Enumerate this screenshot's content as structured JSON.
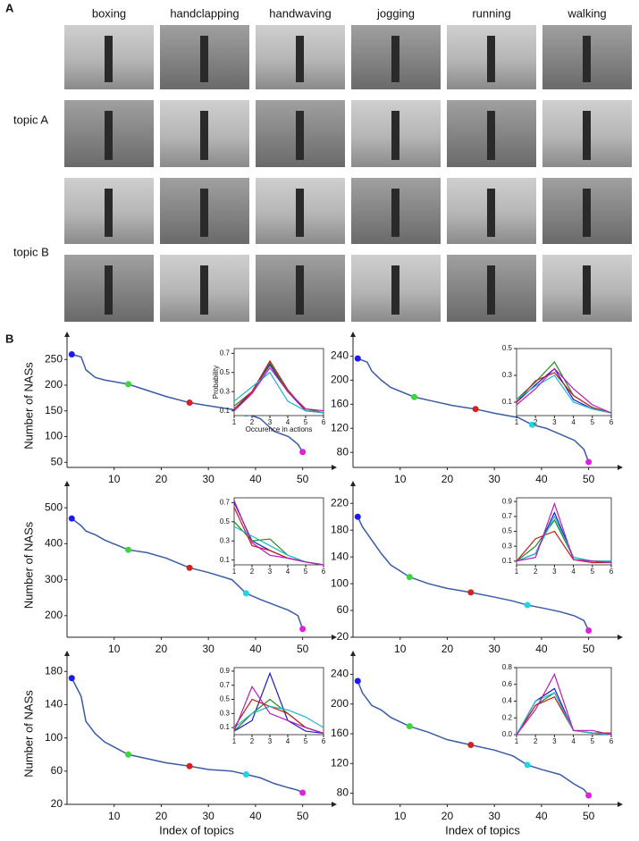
{
  "panel_a": {
    "label": "A",
    "actions": [
      "boxing",
      "handclapping",
      "handwaving",
      "jogging",
      "running",
      "walking"
    ],
    "topics": [
      "topic A",
      "topic B"
    ]
  },
  "panel_b": {
    "label": "B"
  },
  "chart_data": [
    {
      "type": "line",
      "y_label": "Number of NASs",
      "xlim": [
        0,
        55
      ],
      "ylim": [
        40,
        280
      ],
      "xticks": [
        10,
        20,
        30,
        40,
        50
      ],
      "yticks": [
        50,
        100,
        150,
        200,
        250
      ],
      "series": [
        {
          "color": "#3a5ba8",
          "x": [
            1,
            3,
            4,
            6,
            8,
            13,
            17,
            21,
            26,
            30,
            35,
            38,
            41,
            44,
            47,
            49,
            50
          ],
          "values": [
            260,
            255,
            230,
            215,
            210,
            202,
            190,
            178,
            166,
            160,
            153,
            145,
            135,
            110,
            100,
            85,
            70
          ]
        },
        {
          "type": "scatter",
          "x": [
            1,
            13,
            26,
            38,
            50
          ],
          "values": [
            260,
            202,
            166,
            145,
            70
          ],
          "colors": [
            "#1a1aff",
            "#3fd43f",
            "#d42020",
            "#20d4e0",
            "#e020e0"
          ]
        }
      ],
      "inset": {
        "type": "line",
        "y_label": "Probability",
        "x_label": "Occurence in actions",
        "xlim": [
          1,
          6
        ],
        "ylim": [
          0.05,
          0.75
        ],
        "xticks": [
          1,
          2,
          3,
          4,
          5,
          6
        ],
        "yticks": [
          0.1,
          0.3,
          0.5,
          0.7
        ],
        "series": [
          {
            "color": "#1a1acc",
            "values": [
              0.1,
              0.3,
              0.58,
              0.3,
              0.1,
              0.08
            ]
          },
          {
            "color": "#1a8a1a",
            "values": [
              0.15,
              0.3,
              0.6,
              0.3,
              0.12,
              0.08
            ]
          },
          {
            "color": "#cc1a1a",
            "values": [
              0.12,
              0.3,
              0.62,
              0.32,
              0.1,
              0.08
            ]
          },
          {
            "color": "#1ab8cc",
            "values": [
              0.2,
              0.35,
              0.5,
              0.2,
              0.1,
              0.08
            ]
          },
          {
            "color": "#b81ab8",
            "values": [
              0.1,
              0.28,
              0.55,
              0.3,
              0.12,
              0.1
            ]
          }
        ]
      }
    },
    {
      "type": "line",
      "xlim": [
        0,
        55
      ],
      "ylim": [
        55,
        260
      ],
      "xticks": [
        10,
        20,
        30,
        40,
        50
      ],
      "yticks": [
        80,
        120,
        160,
        200,
        240
      ],
      "series": [
        {
          "color": "#3a5ba8",
          "x": [
            1,
            3,
            4,
            6,
            8,
            13,
            17,
            21,
            26,
            30,
            35,
            38,
            41,
            44,
            47,
            49,
            50
          ],
          "values": [
            236,
            230,
            215,
            200,
            188,
            172,
            165,
            158,
            152,
            145,
            138,
            126,
            120,
            110,
            100,
            85,
            64
          ]
        },
        {
          "type": "scatter",
          "x": [
            1,
            13,
            26,
            38,
            50
          ],
          "values": [
            236,
            172,
            152,
            126,
            64
          ],
          "colors": [
            "#1a1aff",
            "#3fd43f",
            "#d42020",
            "#20d4e0",
            "#e020e0"
          ]
        }
      ],
      "inset": {
        "type": "line",
        "xlim": [
          1,
          6
        ],
        "ylim": [
          0,
          0.5
        ],
        "xticks": [
          1,
          2,
          3,
          4,
          5,
          6
        ],
        "yticks": [
          0.1,
          0.3,
          0.5
        ],
        "series": [
          {
            "color": "#1a1acc",
            "values": [
              0.1,
              0.23,
              0.35,
              0.12,
              0.05,
              0.02
            ]
          },
          {
            "color": "#1a8a1a",
            "values": [
              0.12,
              0.25,
              0.4,
              0.15,
              0.06,
              0.02
            ]
          },
          {
            "color": "#cc1a1a",
            "values": [
              0.1,
              0.26,
              0.32,
              0.15,
              0.06,
              0.02
            ]
          },
          {
            "color": "#1ab8cc",
            "values": [
              0.12,
              0.22,
              0.3,
              0.1,
              0.05,
              0.02
            ]
          },
          {
            "color": "#b81ab8",
            "values": [
              0.08,
              0.2,
              0.35,
              0.2,
              0.08,
              0.02
            ]
          }
        ]
      }
    },
    {
      "type": "line",
      "y_label": "Number of NASs",
      "xlim": [
        0,
        55
      ],
      "ylim": [
        140,
        540
      ],
      "xticks": [
        10,
        20,
        30,
        40,
        50
      ],
      "yticks": [
        200,
        300,
        400,
        500
      ],
      "series": [
        {
          "color": "#3a5ba8",
          "x": [
            1,
            3,
            4,
            6,
            8,
            13,
            17,
            21,
            26,
            30,
            35,
            38,
            41,
            44,
            47,
            49,
            50
          ],
          "values": [
            470,
            450,
            435,
            425,
            410,
            383,
            375,
            360,
            333,
            320,
            300,
            262,
            245,
            230,
            215,
            200,
            163
          ]
        },
        {
          "type": "scatter",
          "x": [
            1,
            13,
            26,
            38,
            50
          ],
          "values": [
            470,
            383,
            333,
            262,
            163
          ],
          "colors": [
            "#1a1aff",
            "#3fd43f",
            "#d42020",
            "#20d4e0",
            "#e020e0"
          ]
        }
      ],
      "inset": {
        "type": "line",
        "xlim": [
          1,
          6
        ],
        "ylim": [
          0.05,
          0.75
        ],
        "xticks": [
          1,
          2,
          3,
          4,
          5,
          6
        ],
        "yticks": [
          0.1,
          0.3,
          0.5,
          0.7
        ],
        "series": [
          {
            "color": "#1a1acc",
            "values": [
              0.7,
              0.3,
              0.2,
              0.12,
              0.08,
              0.05
            ]
          },
          {
            "color": "#1a8a1a",
            "values": [
              0.5,
              0.3,
              0.32,
              0.15,
              0.08,
              0.05
            ]
          },
          {
            "color": "#cc1a1a",
            "values": [
              0.65,
              0.25,
              0.2,
              0.12,
              0.08,
              0.05
            ]
          },
          {
            "color": "#1ab8cc",
            "values": [
              0.45,
              0.35,
              0.25,
              0.15,
              0.08,
              0.05
            ]
          },
          {
            "color": "#b81ab8",
            "values": [
              0.72,
              0.28,
              0.15,
              0.12,
              0.08,
              0.05
            ]
          }
        ]
      }
    },
    {
      "type": "line",
      "xlim": [
        0,
        55
      ],
      "ylim": [
        20,
        235
      ],
      "xticks": [
        10,
        20,
        30,
        40,
        50
      ],
      "yticks": [
        20,
        60,
        100,
        140,
        180,
        220
      ],
      "series": [
        {
          "color": "#3a5ba8",
          "x": [
            1,
            2,
            4,
            6,
            8,
            12,
            16,
            20,
            25,
            30,
            34,
            37,
            40,
            44,
            47,
            49,
            50
          ],
          "values": [
            200,
            185,
            165,
            145,
            128,
            110,
            100,
            93,
            87,
            80,
            74,
            68,
            64,
            58,
            52,
            45,
            30
          ]
        },
        {
          "type": "scatter",
          "x": [
            1,
            12,
            25,
            37,
            50
          ],
          "values": [
            200,
            110,
            87,
            68,
            30
          ],
          "colors": [
            "#1a1aff",
            "#3fd43f",
            "#d42020",
            "#20d4e0",
            "#e020e0"
          ]
        }
      ],
      "inset": {
        "type": "line",
        "xlim": [
          1,
          6
        ],
        "ylim": [
          0.05,
          0.95
        ],
        "xticks": [
          1,
          2,
          3,
          4,
          5,
          6
        ],
        "yticks": [
          0.1,
          0.3,
          0.5,
          0.7,
          0.9
        ],
        "series": [
          {
            "color": "#1a1acc",
            "values": [
              0.1,
              0.2,
              0.75,
              0.15,
              0.1,
              0.08
            ]
          },
          {
            "color": "#1a8a1a",
            "values": [
              0.1,
              0.3,
              0.65,
              0.15,
              0.1,
              0.1
            ]
          },
          {
            "color": "#cc1a1a",
            "values": [
              0.1,
              0.4,
              0.5,
              0.12,
              0.08,
              0.08
            ]
          },
          {
            "color": "#1ab8cc",
            "values": [
              0.1,
              0.2,
              0.7,
              0.15,
              0.1,
              0.1
            ]
          },
          {
            "color": "#b81ab8",
            "values": [
              0.1,
              0.15,
              0.87,
              0.12,
              0.1,
              0.08
            ]
          }
        ]
      }
    },
    {
      "type": "line",
      "y_label": "Number of NASs",
      "x_label": "Index of topics",
      "xlim": [
        0,
        55
      ],
      "ylim": [
        20,
        190
      ],
      "xticks": [
        10,
        20,
        30,
        40,
        50
      ],
      "yticks": [
        20,
        60,
        100,
        140,
        180
      ],
      "series": [
        {
          "color": "#3a5ba8",
          "x": [
            1,
            3,
            4,
            6,
            8,
            13,
            17,
            21,
            26,
            30,
            35,
            38,
            41,
            44,
            47,
            49,
            50
          ],
          "values": [
            172,
            150,
            120,
            105,
            95,
            80,
            75,
            70,
            66,
            62,
            60,
            56,
            52,
            45,
            40,
            37,
            34
          ]
        },
        {
          "type": "scatter",
          "x": [
            1,
            13,
            26,
            38,
            50
          ],
          "values": [
            172,
            80,
            66,
            56,
            34
          ],
          "colors": [
            "#1a1aff",
            "#3fd43f",
            "#d42020",
            "#20d4e0",
            "#e020e0"
          ]
        }
      ],
      "inset": {
        "type": "line",
        "xlim": [
          1,
          6
        ],
        "ylim": [
          0,
          0.95
        ],
        "xticks": [
          1,
          2,
          3,
          4,
          5,
          6
        ],
        "yticks": [
          0.1,
          0.3,
          0.5,
          0.7,
          0.9
        ],
        "series": [
          {
            "color": "#1a1acc",
            "values": [
              0.05,
              0.2,
              0.87,
              0.2,
              0.05,
              0.02
            ]
          },
          {
            "color": "#1a8a1a",
            "values": [
              0.05,
              0.3,
              0.5,
              0.3,
              0.1,
              0.02
            ]
          },
          {
            "color": "#cc1a1a",
            "values": [
              0.1,
              0.5,
              0.4,
              0.3,
              0.1,
              0.02
            ]
          },
          {
            "color": "#1ab8cc",
            "values": [
              0.1,
              0.3,
              0.4,
              0.35,
              0.25,
              0.1
            ]
          },
          {
            "color": "#b81ab8",
            "values": [
              0.05,
              0.68,
              0.3,
              0.2,
              0.1,
              0.02
            ]
          }
        ]
      }
    },
    {
      "type": "line",
      "x_label": "Index of topics",
      "xlim": [
        0,
        55
      ],
      "ylim": [
        65,
        255
      ],
      "xticks": [
        10,
        20,
        30,
        40,
        50
      ],
      "yticks": [
        80,
        120,
        160,
        200,
        240
      ],
      "series": [
        {
          "color": "#3a5ba8",
          "x": [
            1,
            2,
            4,
            6,
            8,
            12,
            16,
            20,
            25,
            30,
            34,
            37,
            40,
            44,
            47,
            49,
            50
          ],
          "values": [
            231,
            215,
            198,
            192,
            182,
            170,
            162,
            152,
            145,
            138,
            130,
            118,
            112,
            105,
            92,
            85,
            77
          ]
        },
        {
          "type": "scatter",
          "x": [
            1,
            12,
            25,
            37,
            50
          ],
          "values": [
            231,
            170,
            145,
            118,
            77
          ],
          "colors": [
            "#1a1aff",
            "#3fd43f",
            "#d42020",
            "#20d4e0",
            "#e020e0"
          ]
        }
      ],
      "inset": {
        "type": "line",
        "xlim": [
          1,
          6
        ],
        "ylim": [
          0,
          0.8
        ],
        "xticks": [
          1,
          2,
          3,
          4,
          5,
          6
        ],
        "yticks": [
          {
            "value": 0,
            "label": "0.0"
          },
          0.2,
          0.4,
          0.6,
          0.8
        ],
        "series": [
          {
            "color": "#1a1acc",
            "values": [
              0,
              0.4,
              0.55,
              0.05,
              0.02,
              0
            ]
          },
          {
            "color": "#1a8a1a",
            "values": [
              0,
              0.35,
              0.5,
              0.05,
              0.02,
              0
            ]
          },
          {
            "color": "#cc1a1a",
            "values": [
              0,
              0.35,
              0.45,
              0.05,
              0.02,
              0.02
            ]
          },
          {
            "color": "#1ab8cc",
            "values": [
              0,
              0.4,
              0.5,
              0.05,
              0.02,
              0
            ]
          },
          {
            "color": "#b81ab8",
            "values": [
              0,
              0.3,
              0.72,
              0.05,
              0.05,
              0
            ]
          }
        ]
      }
    }
  ]
}
